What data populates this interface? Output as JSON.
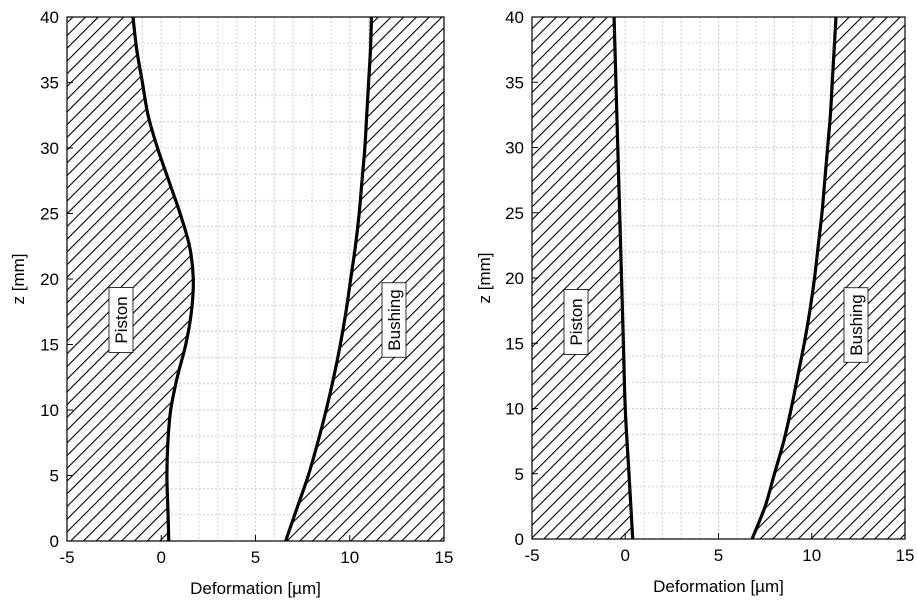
{
  "chart_data": [
    {
      "type": "line",
      "title": "",
      "xlabel": "Deformation [µm]",
      "ylabel": "z [mm]",
      "xlim": [
        -5,
        15
      ],
      "ylim": [
        0,
        40
      ],
      "xticks": [
        "-5",
        "0",
        "5",
        "10",
        "15"
      ],
      "yticks": [
        "0",
        "5",
        "10",
        "15",
        "20",
        "25",
        "30",
        "35",
        "40"
      ],
      "grid": true,
      "annotations": [
        "Piston",
        "Bushing"
      ],
      "series": [
        {
          "z": [
            0,
            2.5,
            5,
            7.5,
            10,
            12.5,
            15,
            17.5,
            20,
            22.5,
            25,
            27.5,
            30,
            32.5,
            35,
            37.5,
            40
          ],
          "x": [
            0.4,
            0.35,
            0.3,
            0.35,
            0.5,
            0.85,
            1.3,
            1.6,
            1.7,
            1.5,
            1.0,
            0.4,
            -0.2,
            -0.7,
            -1.0,
            -1.3,
            -1.5
          ]
        },
        {
          "z": [
            0,
            2.5,
            5,
            7.5,
            10,
            12.5,
            15,
            17.5,
            20,
            22.5,
            25,
            27.5,
            30,
            32.5,
            35,
            37.5,
            40
          ],
          "x": [
            6.6,
            7.2,
            7.8,
            8.3,
            8.75,
            9.15,
            9.5,
            9.8,
            10.05,
            10.3,
            10.5,
            10.65,
            10.8,
            10.9,
            11.0,
            11.1,
            11.15
          ]
        }
      ]
    },
    {
      "type": "line",
      "title": "",
      "xlabel": "Deformation [µm]",
      "ylabel": "z [mm]",
      "xlim": [
        -5,
        15
      ],
      "ylim": [
        0,
        40
      ],
      "xticks": [
        "-5",
        "0",
        "5",
        "10",
        "15"
      ],
      "yticks": [
        "0",
        "5",
        "10",
        "15",
        "20",
        "25",
        "30",
        "35",
        "40"
      ],
      "grid": true,
      "annotations": [
        "Piston",
        "Bushing"
      ],
      "series": [
        {
          "z": [
            0,
            5,
            10,
            15,
            20,
            25,
            30,
            35,
            40
          ],
          "x": [
            0.4,
            0.2,
            0.0,
            -0.1,
            -0.2,
            -0.3,
            -0.4,
            -0.5,
            -0.6
          ]
        },
        {
          "z": [
            0,
            2.5,
            5,
            7.5,
            10,
            12.5,
            15,
            17.5,
            20,
            22.5,
            25,
            27.5,
            30,
            32.5,
            35,
            37.5,
            40
          ],
          "x": [
            6.8,
            7.5,
            8.0,
            8.5,
            8.9,
            9.25,
            9.6,
            9.9,
            10.15,
            10.35,
            10.55,
            10.7,
            10.85,
            11.0,
            11.1,
            11.2,
            11.3
          ]
        }
      ]
    }
  ]
}
